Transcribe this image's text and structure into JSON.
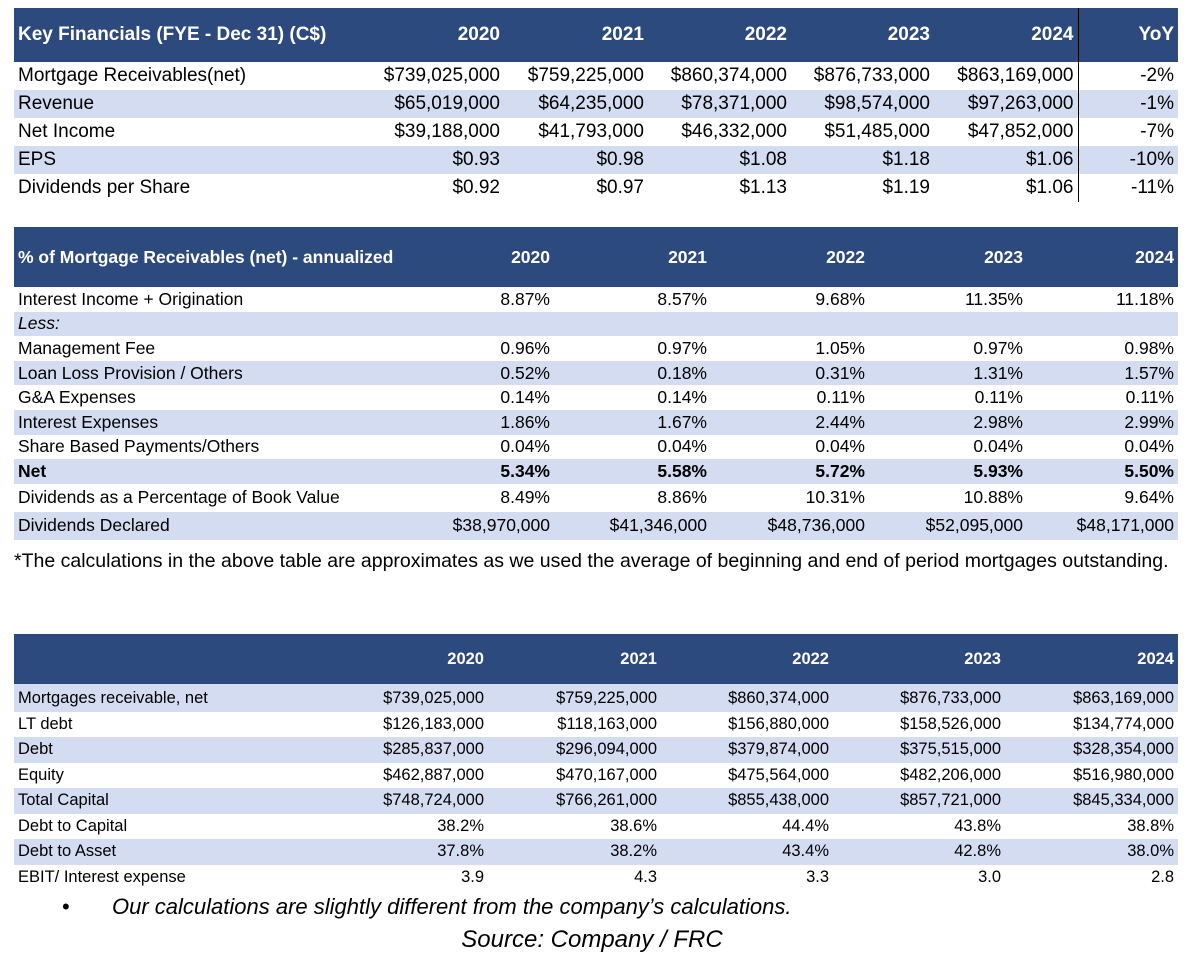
{
  "key_financials": {
    "title": "Key Financials (FYE - Dec 31) (C$)",
    "years": [
      "2020",
      "2021",
      "2022",
      "2023",
      "2024"
    ],
    "yoy_label": "YoY",
    "rows": [
      {
        "label": "Mortgage Receivables(net)",
        "values": [
          "$739,025,000",
          "$759,225,000",
          "$860,374,000",
          "$876,733,000",
          "$863,169,000"
        ],
        "yoy": "-2%"
      },
      {
        "label": "Revenue",
        "values": [
          "$65,019,000",
          "$64,235,000",
          "$78,371,000",
          "$98,574,000",
          "$97,263,000"
        ],
        "yoy": "-1%"
      },
      {
        "label": "Net Income",
        "values": [
          "$39,188,000",
          "$41,793,000",
          "$46,332,000",
          "$51,485,000",
          "$47,852,000"
        ],
        "yoy": "-7%"
      },
      {
        "label": "EPS",
        "values": [
          "$0.93",
          "$0.98",
          "$1.08",
          "$1.18",
          "$1.06"
        ],
        "yoy": "-10%"
      },
      {
        "label": "Dividends per Share",
        "values": [
          "$0.92",
          "$0.97",
          "$1.13",
          "$1.19",
          "$1.06"
        ],
        "yoy": "-11%"
      }
    ]
  },
  "mortgage_pct": {
    "title": "% of Mortgage Receivables (net) - annualized",
    "years": [
      "2020",
      "2021",
      "2022",
      "2023",
      "2024"
    ],
    "rows": [
      {
        "label": "Interest Income + Origination",
        "values": [
          "8.87%",
          "8.57%",
          "9.68%",
          "11.35%",
          "11.18%"
        ]
      },
      {
        "label": "Less:",
        "values": [
          "",
          "",
          "",
          "",
          ""
        ]
      },
      {
        "label": "Management Fee",
        "values": [
          "0.96%",
          "0.97%",
          "1.05%",
          "0.97%",
          "0.98%"
        ]
      },
      {
        "label": "Loan Loss Provision / Others",
        "values": [
          "0.52%",
          "0.18%",
          "0.31%",
          "1.31%",
          "1.57%"
        ]
      },
      {
        "label": "G&A Expenses",
        "values": [
          "0.14%",
          "0.14%",
          "0.11%",
          "0.11%",
          "0.11%"
        ]
      },
      {
        "label": "Interest Expenses",
        "values": [
          "1.86%",
          "1.67%",
          "2.44%",
          "2.98%",
          "2.99%"
        ]
      },
      {
        "label": "Share Based Payments/Others",
        "values": [
          "0.04%",
          "0.04%",
          "0.04%",
          "0.04%",
          "0.04%"
        ]
      },
      {
        "label": "Net",
        "values": [
          "5.34%",
          "5.58%",
          "5.72%",
          "5.93%",
          "5.50%"
        ]
      },
      {
        "label": "Dividends as a Percentage of Book Value",
        "values": [
          "8.49%",
          "8.86%",
          "10.31%",
          "10.88%",
          "9.64%"
        ]
      },
      {
        "label": "Dividends Declared",
        "values": [
          "$38,970,000",
          "$41,346,000",
          "$48,736,000",
          "$52,095,000",
          "$48,171,000"
        ]
      }
    ],
    "note": "*The calculations in the above table are approximates as we used the average of beginning and end of period mortgages outstanding."
  },
  "capital": {
    "years": [
      "2020",
      "2021",
      "2022",
      "2023",
      "2024"
    ],
    "rows": [
      {
        "label": "Mortgages receivable, net",
        "values": [
          "$739,025,000",
          "$759,225,000",
          "$860,374,000",
          "$876,733,000",
          "$863,169,000"
        ]
      },
      {
        "label": "LT debt",
        "values": [
          "$126,183,000",
          "$118,163,000",
          "$156,880,000",
          "$158,526,000",
          "$134,774,000"
        ]
      },
      {
        "label": "Debt",
        "values": [
          "$285,837,000",
          "$296,094,000",
          "$379,874,000",
          "$375,515,000",
          "$328,354,000"
        ]
      },
      {
        "label": "Equity",
        "values": [
          "$462,887,000",
          "$470,167,000",
          "$475,564,000",
          "$482,206,000",
          "$516,980,000"
        ]
      },
      {
        "label": "Total Capital",
        "values": [
          "$748,724,000",
          "$766,261,000",
          "$855,438,000",
          "$857,721,000",
          "$845,334,000"
        ]
      },
      {
        "label": "Debt to Capital",
        "values": [
          "38.2%",
          "38.6%",
          "44.4%",
          "43.8%",
          "38.8%"
        ]
      },
      {
        "label": "Debt to Asset",
        "values": [
          "37.8%",
          "38.2%",
          "43.4%",
          "42.8%",
          "38.0%"
        ]
      },
      {
        "label": "EBIT/ Interest expense",
        "values": [
          "3.9",
          "4.3",
          "3.3",
          "3.0",
          "2.8"
        ]
      }
    ]
  },
  "footer": {
    "bullet_symbol": "•",
    "bullet": "Our calculations are slightly different from the company’s calculations.",
    "source": "Source: Company / FRC"
  }
}
